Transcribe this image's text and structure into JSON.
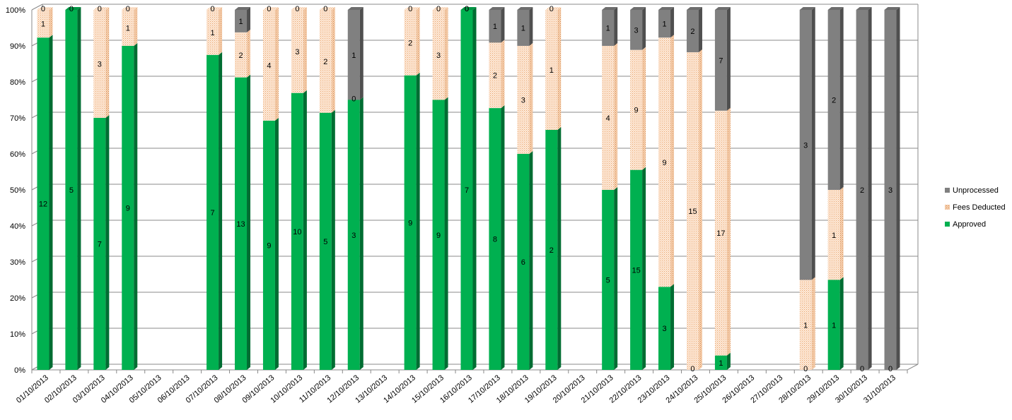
{
  "chart_data": {
    "type": "bar",
    "stacked": "percent",
    "style": "3d-column",
    "ylim": [
      0,
      100
    ],
    "y_ticks": [
      "0%",
      "10%",
      "20%",
      "30%",
      "40%",
      "50%",
      "60%",
      "70%",
      "80%",
      "90%",
      "100%"
    ],
    "grid": true,
    "legend_position": "right",
    "categories": [
      "01/10/2013",
      "02/10/2013",
      "03/10/2013",
      "04/10/2013",
      "05/10/2013",
      "06/10/2013",
      "07/10/2013",
      "08/10/2013",
      "09/10/2013",
      "10/10/2013",
      "11/10/2013",
      "12/10/2013",
      "13/10/2013",
      "14/10/2013",
      "15/10/2013",
      "16/10/2013",
      "17/10/2013",
      "18/10/2013",
      "19/10/2013",
      "20/10/2013",
      "21/10/2013",
      "22/10/2013",
      "23/10/2013",
      "24/10/2013",
      "25/10/2013",
      "26/10/2013",
      "27/10/2013",
      "28/10/2013",
      "29/10/2013",
      "30/10/2013",
      "31/10/2013"
    ],
    "series": [
      {
        "name": "Approved",
        "color": "#00b050",
        "pattern": "solid",
        "values": [
          12,
          5,
          7,
          9,
          null,
          null,
          7,
          13,
          9,
          10,
          5,
          3,
          null,
          9,
          9,
          7,
          8,
          6,
          2,
          null,
          5,
          15,
          3,
          0,
          1,
          null,
          null,
          0,
          1,
          0,
          0
        ]
      },
      {
        "name": "Fees Deducted",
        "color": "#fbd5b5",
        "pattern": "dotted",
        "values": [
          1,
          0,
          3,
          1,
          null,
          null,
          1,
          2,
          4,
          3,
          2,
          0,
          null,
          2,
          3,
          0,
          2,
          3,
          1,
          null,
          4,
          9,
          9,
          15,
          17,
          null,
          null,
          1,
          1,
          null,
          null
        ]
      },
      {
        "name": "Unprocessed",
        "color": "#808080",
        "pattern": "solid",
        "values": [
          0,
          null,
          0,
          0,
          null,
          null,
          0,
          1,
          0,
          0,
          0,
          1,
          null,
          0,
          0,
          0,
          1,
          1,
          0,
          null,
          1,
          3,
          1,
          2,
          7,
          null,
          null,
          3,
          2,
          2,
          3
        ]
      }
    ]
  }
}
